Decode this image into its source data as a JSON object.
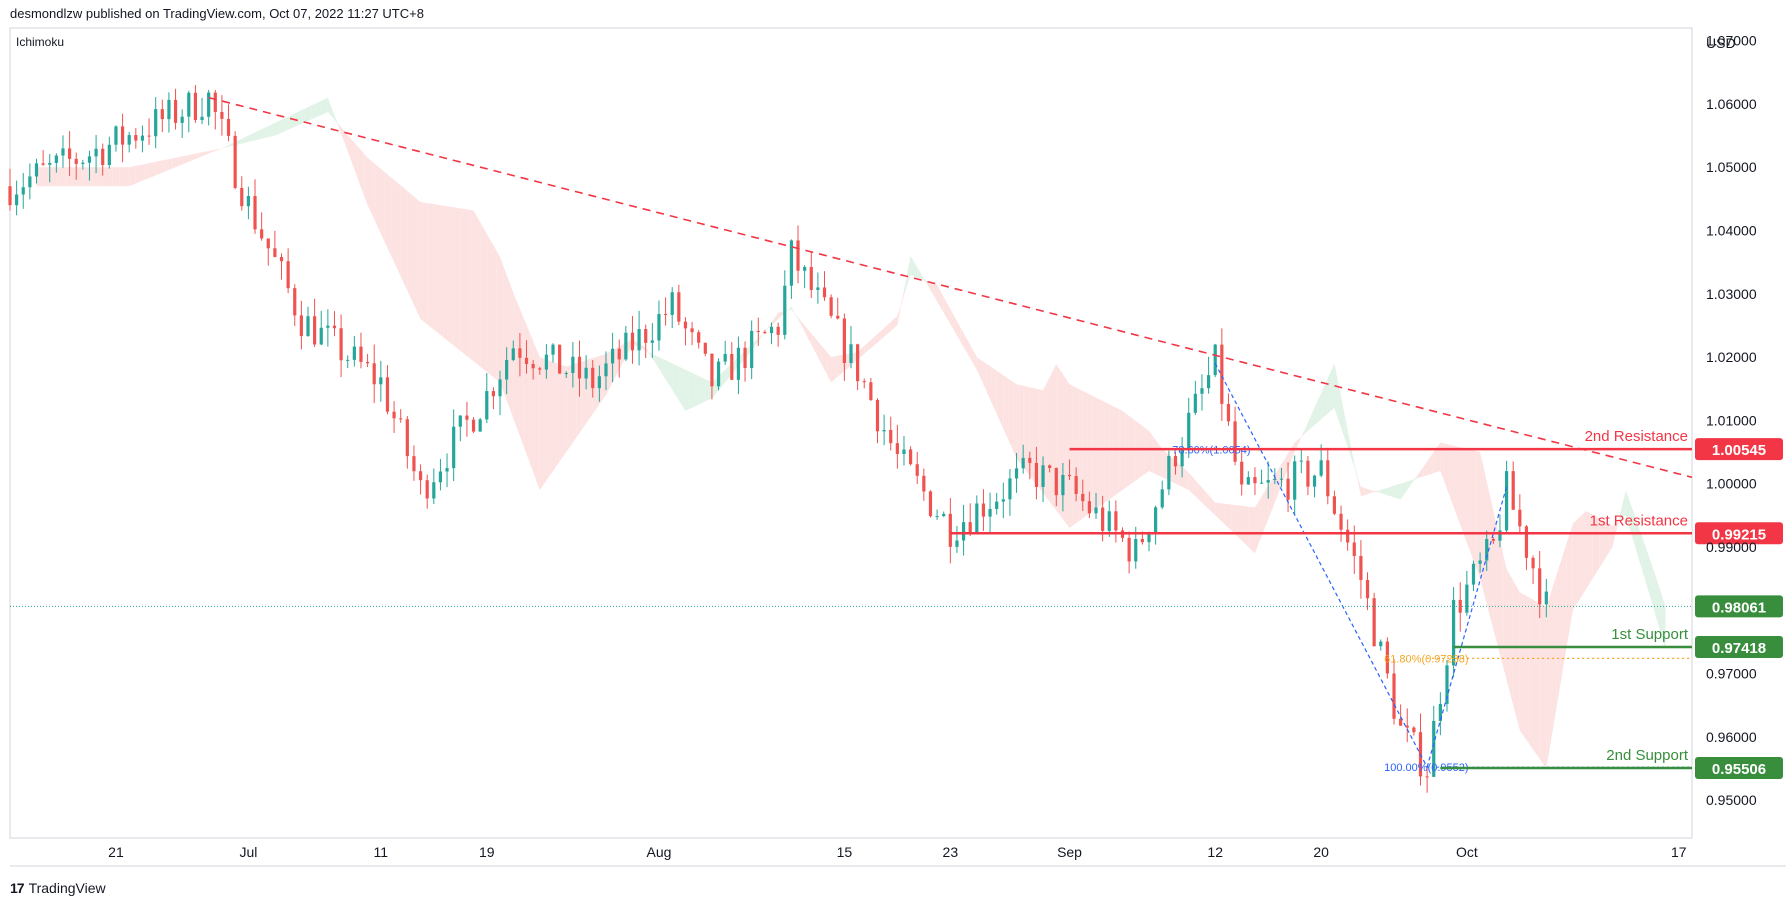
{
  "header": {
    "publisher": "desmondlzw published on TradingView.com, Oct 07, 2022 11:27 UTC+8",
    "indicator": "Ichimoku",
    "currency": "USD",
    "brand": "TradingView"
  },
  "colors": {
    "up": "#26a69a",
    "down": "#ef5350",
    "resistance": "#f23645",
    "support": "#388e3c",
    "fib_line": "#2962ff",
    "fib_618": "#f5a623",
    "cloud_bear": "#fde2e2",
    "cloud_bull": "#e0f3e6"
  },
  "chart_data": {
    "type": "candlestick",
    "instrument_quote_currency": "USD",
    "x_tick_labels": [
      "21",
      "Jul",
      "11",
      "19",
      "Aug",
      "15",
      "23",
      "Sep",
      "12",
      "20",
      "Oct",
      "17"
    ],
    "x_tick_dates": [
      "2022-06-21",
      "2022-07-01",
      "2022-07-11",
      "2022-07-19",
      "2022-08-01",
      "2022-08-15",
      "2022-08-23",
      "2022-09-01",
      "2022-09-12",
      "2022-09-20",
      "2022-10-01",
      "2022-10-17"
    ],
    "y_tick_labels": [
      "1.07000",
      "1.06000",
      "1.05000",
      "1.04000",
      "1.03000",
      "1.02000",
      "1.01000",
      "1.00000",
      "0.99000",
      "0.97000",
      "0.96000",
      "0.95000"
    ],
    "y_ticks": [
      1.07,
      1.06,
      1.05,
      1.04,
      1.03,
      1.02,
      1.01,
      1.0,
      0.99,
      0.97,
      0.96,
      0.95
    ],
    "xlim": [
      "2022-06-13",
      "2022-10-18"
    ],
    "ylim": [
      0.944,
      1.072
    ],
    "price_path": [
      {
        "date": "2022-06-13",
        "price": 1.047
      },
      {
        "date": "2022-06-20",
        "price": 1.053
      },
      {
        "date": "2022-06-28",
        "price": 1.061
      },
      {
        "date": "2022-07-01",
        "price": 1.044
      },
      {
        "date": "2022-07-05",
        "price": 1.026
      },
      {
        "date": "2022-07-11",
        "price": 1.016
      },
      {
        "date": "2022-07-14",
        "price": 0.999
      },
      {
        "date": "2022-07-19",
        "price": 1.014
      },
      {
        "date": "2022-07-21",
        "price": 1.022
      },
      {
        "date": "2022-07-27",
        "price": 1.016
      },
      {
        "date": "2022-08-02",
        "price": 1.028
      },
      {
        "date": "2022-08-05",
        "price": 1.016
      },
      {
        "date": "2022-08-10",
        "price": 1.025
      },
      {
        "date": "2022-08-11",
        "price": 1.036
      },
      {
        "date": "2022-08-16",
        "price": 1.018
      },
      {
        "date": "2022-08-19",
        "price": 1.004
      },
      {
        "date": "2022-08-23",
        "price": 0.993
      },
      {
        "date": "2022-08-29",
        "price": 1.002
      },
      {
        "date": "2022-09-01",
        "price": 0.999
      },
      {
        "date": "2022-09-06",
        "price": 0.989
      },
      {
        "date": "2022-09-09",
        "price": 1.005
      },
      {
        "date": "2022-09-12",
        "price": 1.019
      },
      {
        "date": "2022-09-14",
        "price": 0.998
      },
      {
        "date": "2022-09-20",
        "price": 1.002
      },
      {
        "date": "2022-09-23",
        "price": 0.985
      },
      {
        "date": "2022-09-26",
        "price": 0.961
      },
      {
        "date": "2022-09-28",
        "price": 0.955
      },
      {
        "date": "2022-09-30",
        "price": 0.98
      },
      {
        "date": "2022-10-03",
        "price": 0.99
      },
      {
        "date": "2022-10-04",
        "price": 0.999
      },
      {
        "date": "2022-10-06",
        "price": 0.987
      },
      {
        "date": "2022-10-07",
        "price": 0.9806
      }
    ],
    "trendline": {
      "style": "dashed",
      "from": {
        "date": "2022-06-28",
        "price": 1.061
      },
      "to": {
        "date": "2022-10-18",
        "price": 1.001
      }
    },
    "levels": [
      {
        "label": "2nd Resistance",
        "value": "1.00545",
        "price": 1.00545,
        "kind": "resistance"
      },
      {
        "label": "1st Resistance",
        "value": "0.99215",
        "price": 0.99215,
        "kind": "resistance"
      },
      {
        "label": "1st Support",
        "value": "0.97418",
        "price": 0.97418,
        "kind": "support"
      },
      {
        "label": "2nd Support",
        "value": "0.95506",
        "price": 0.95506,
        "kind": "support"
      }
    ],
    "last_price": {
      "value": "0.98061",
      "price": 0.98061
    },
    "fib_annotations": [
      {
        "text": "78.60%(1.0054)",
        "price": 1.0054
      },
      {
        "text": "61.80%(0.97238)",
        "price": 0.97238
      },
      {
        "text": "100.00%(0.9552)",
        "price": 0.9552
      }
    ]
  }
}
